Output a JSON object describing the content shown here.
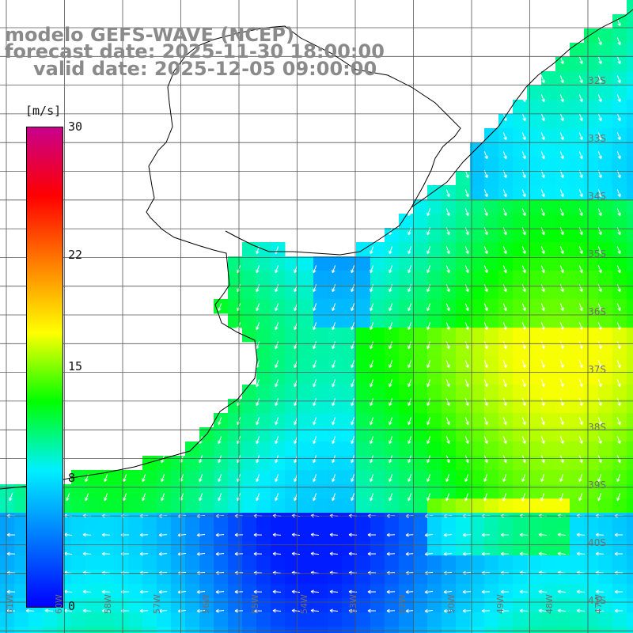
{
  "title": {
    "line1": "modelo GEFS-WAVE (NCEP)",
    "line2": "forecast date: 2025-11-30 18:00:00",
    "line3": "valid date: 2025-12-05 09:00:00"
  },
  "colorbar": {
    "units": "[m/s]",
    "ticks": [
      {
        "label": "30",
        "value": 30
      },
      {
        "label": "22",
        "value": 22
      },
      {
        "label": "15",
        "value": 15
      },
      {
        "label": "8",
        "value": 8
      },
      {
        "label": "0",
        "value": 0
      }
    ],
    "min": 0,
    "max": 30,
    "colors": [
      "#0000ff",
      "#0078ff",
      "#00f0ff",
      "#00ff00",
      "#ffff00",
      "#ff8000",
      "#ff0000",
      "#c8008c"
    ]
  },
  "map": {
    "lat_range": [
      -30,
      -42
    ],
    "lon_range": [
      -61,
      -46
    ],
    "lat_labels": [
      "32S",
      "33S",
      "34S",
      "35S",
      "36S",
      "37S",
      "38S",
      "39S",
      "40S",
      "41S"
    ],
    "lon_labels": [
      "61W",
      "60W",
      "58W",
      "57W",
      "56W",
      "55W",
      "54W",
      "53W",
      "52W",
      "50W",
      "49W",
      "48W",
      "47W"
    ],
    "land_color": "#ffffff",
    "grid_color": "#555555",
    "field": "wind speed (m/s) with direction arrows"
  }
}
